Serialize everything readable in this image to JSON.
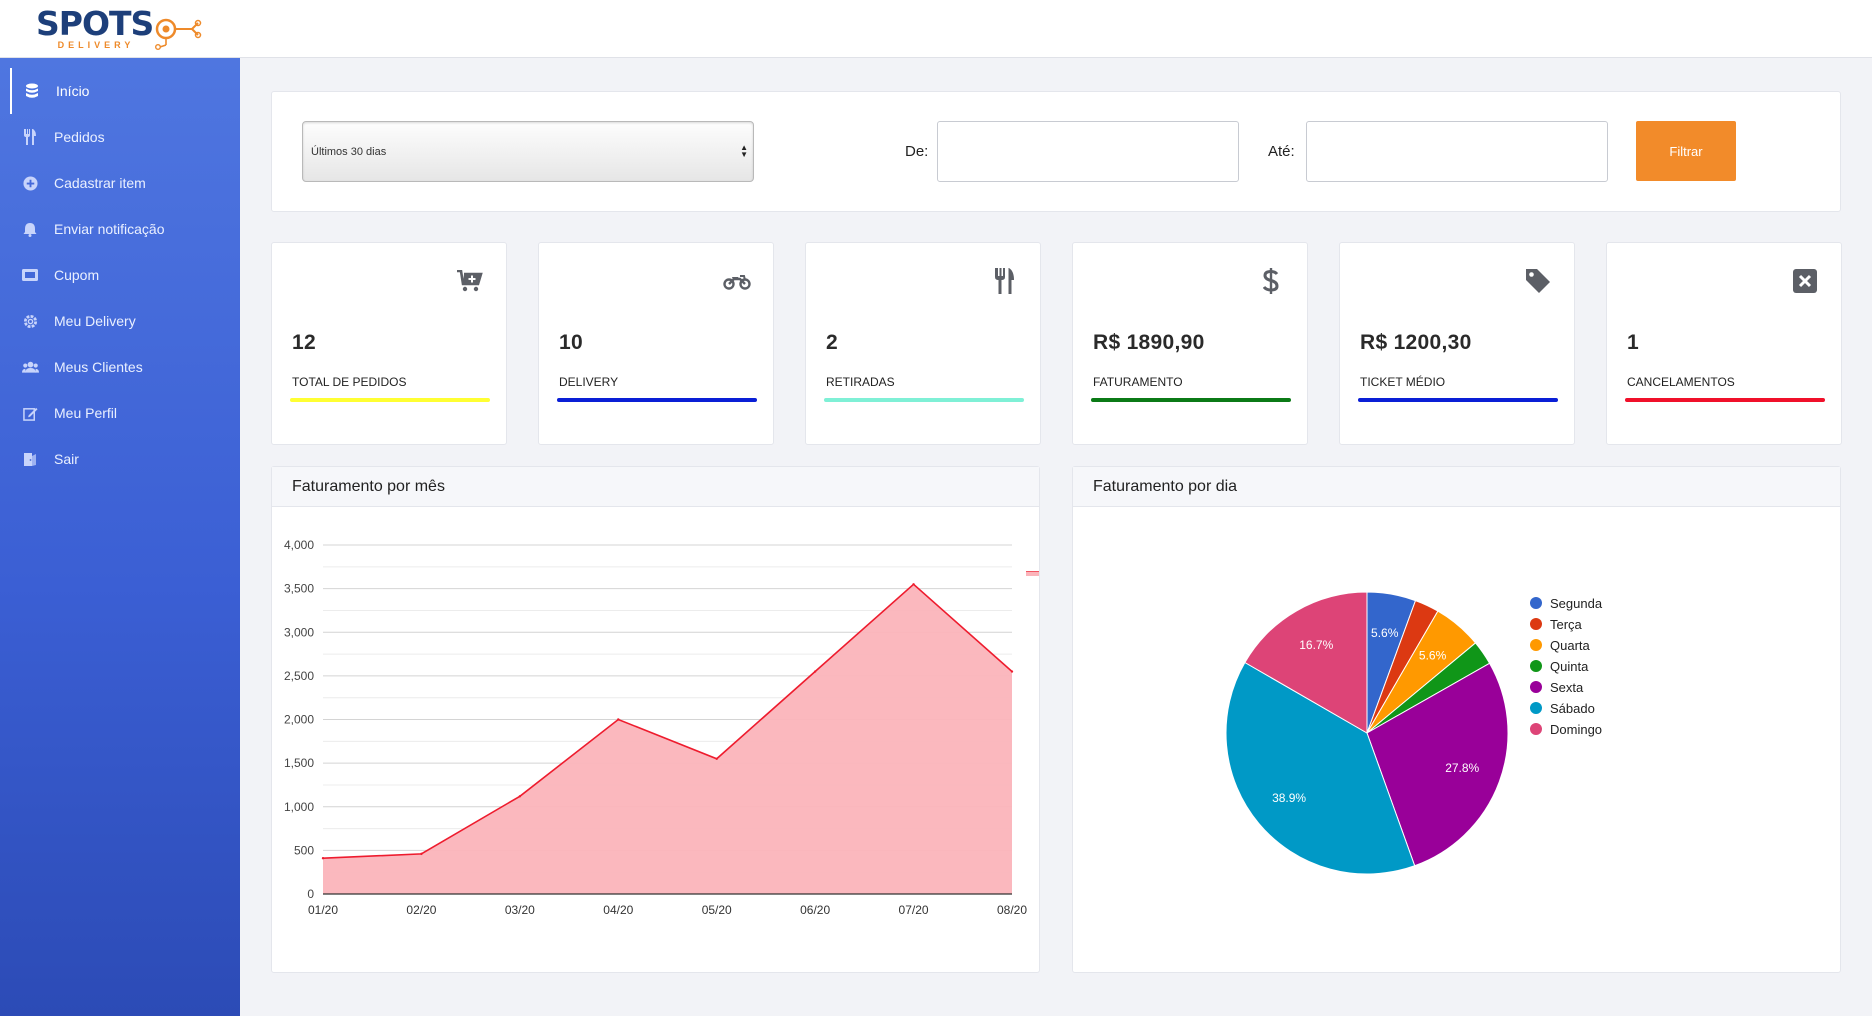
{
  "brand": {
    "name": "SPOTS",
    "tagline": "DELIVERY"
  },
  "sidebar": {
    "items": [
      {
        "label": "Início",
        "icon": "database-icon",
        "active": true
      },
      {
        "label": "Pedidos",
        "icon": "utensils-icon"
      },
      {
        "label": "Cadastrar item",
        "icon": "plus-circle-icon"
      },
      {
        "label": "Enviar notificação",
        "icon": "bell-icon"
      },
      {
        "label": "Cupom",
        "icon": "ticket-icon"
      },
      {
        "label": "Meu Delivery",
        "icon": "gear-icon"
      },
      {
        "label": "Meus Clientes",
        "icon": "users-icon"
      },
      {
        "label": "Meu Perfil",
        "icon": "edit-icon"
      },
      {
        "label": "Sair",
        "icon": "logout-icon"
      }
    ]
  },
  "filter": {
    "period": "Últimos 30 dias",
    "from_label": "De:",
    "to_label": "Até:",
    "from_value": "",
    "to_value": "",
    "button": "Filtrar"
  },
  "stats": [
    {
      "value": "12",
      "label": "TOTAL DE PEDIDOS",
      "icon": "cart-plus-icon",
      "color": "#ffff33"
    },
    {
      "value": "10",
      "label": "DELIVERY",
      "icon": "motorcycle-icon",
      "color": "#0a1fd6"
    },
    {
      "value": "2",
      "label": "RETIRADAS",
      "icon": "utensils-icon",
      "color": "#7ff0d6"
    },
    {
      "value": "R$ 1890,90",
      "label": "FATURAMENTO",
      "icon": "dollar-icon",
      "color": "#0b7a16"
    },
    {
      "value": "R$ 1200,30",
      "label": "TICKET MÉDIO",
      "icon": "tag-icon",
      "color": "#0a1fd6"
    },
    {
      "value": "1",
      "label": "CANCELAMENTOS",
      "icon": "close-box-icon",
      "color": "#f0102a"
    }
  ],
  "colors": {
    "accent": "#f28b2a",
    "sidebar_top": "#4f76e0",
    "sidebar_bottom": "#2c4bb6",
    "brand": "#1d3f7a",
    "area_fill": "#fbb4ba",
    "area_line": "#ee1c2e"
  },
  "chart_titles": {
    "monthly": "Faturamento por mês",
    "daily": "Faturamento por dia"
  },
  "chart_data": [
    {
      "type": "area",
      "title": "Faturamento por mês",
      "categories": [
        "01/20",
        "02/20",
        "03/20",
        "04/20",
        "05/20",
        "06/20",
        "07/20",
        "08/20"
      ],
      "values": [
        410,
        460,
        1120,
        2000,
        1550,
        2550,
        3550,
        2550
      ],
      "yticks": [
        "0",
        "500",
        "1,000",
        "1,500",
        "2,000",
        "2,500",
        "3,000",
        "3,500",
        "4,000"
      ],
      "ylim": [
        0,
        4000
      ],
      "grid": true
    },
    {
      "type": "pie",
      "title": "Faturamento por dia",
      "legend_position": "right",
      "slices": [
        {
          "label": "Segunda",
          "value": 5.6,
          "text": "5.6%",
          "color": "#3366cc"
        },
        {
          "label": "Terça",
          "value": 2.8,
          "text": "",
          "color": "#dc3912"
        },
        {
          "label": "Quarta",
          "value": 5.6,
          "text": "5.6%",
          "color": "#ff9900"
        },
        {
          "label": "Quinta",
          "value": 2.8,
          "text": "",
          "color": "#109618"
        },
        {
          "label": "Sexta",
          "value": 27.8,
          "text": "27.8%",
          "color": "#990099"
        },
        {
          "label": "Sábado",
          "value": 38.9,
          "text": "38.9%",
          "color": "#0099c6"
        },
        {
          "label": "Domingo",
          "value": 16.7,
          "text": "16.7%",
          "color": "#dd4477"
        }
      ]
    }
  ]
}
